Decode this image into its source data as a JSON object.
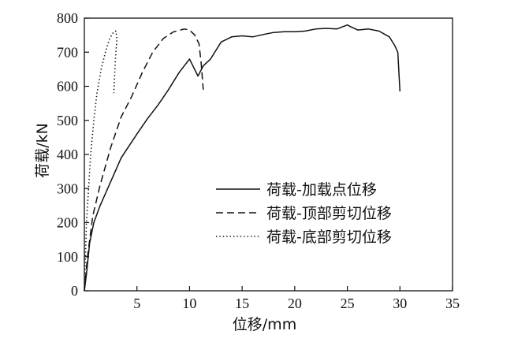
{
  "chart_data": {
    "type": "line",
    "xlabel": "位移/mm",
    "ylabel": "荷载/kN",
    "xlim": [
      0,
      35
    ],
    "ylim": [
      0,
      800
    ],
    "xticks": [
      5,
      10,
      15,
      20,
      25,
      30,
      35
    ],
    "yticks": [
      0,
      100,
      200,
      300,
      400,
      500,
      600,
      700,
      800
    ],
    "origin_label": "0",
    "grid": false,
    "legend_position": "center-right",
    "series": [
      {
        "name": "荷载-加载点位移",
        "style": "solid",
        "color": "#111111",
        "x": [
          0,
          0.2,
          0.5,
          0.9,
          1.5,
          2.5,
          3.5,
          5,
          6,
          7,
          8,
          9,
          10,
          10.8,
          11.3,
          12,
          13,
          14,
          15,
          16,
          17,
          18,
          19,
          20,
          21,
          22,
          23,
          24,
          25,
          25.3,
          26,
          27,
          28,
          29,
          29.5,
          29.8,
          30
        ],
        "y": [
          0,
          50,
          140,
          200,
          250,
          320,
          390,
          460,
          505,
          545,
          590,
          640,
          680,
          630,
          660,
          680,
          730,
          745,
          748,
          745,
          752,
          758,
          760,
          760,
          762,
          768,
          770,
          768,
          780,
          775,
          765,
          768,
          762,
          745,
          720,
          700,
          585
        ]
      },
      {
        "name": "荷载-顶部剪切位移",
        "style": "dashed",
        "color": "#111111",
        "x": [
          0,
          0.3,
          0.8,
          1.5,
          2.5,
          3.5,
          4.5,
          5.5,
          6.5,
          7.5,
          8.5,
          9.5,
          10,
          10.5,
          10.9,
          11.1,
          11.3
        ],
        "y": [
          0,
          100,
          220,
          310,
          420,
          510,
          570,
          640,
          700,
          740,
          760,
          768,
          765,
          750,
          725,
          670,
          590
        ]
      },
      {
        "name": "荷载-底部剪切位移",
        "style": "dotted",
        "color": "#111111",
        "x": [
          0,
          0.1,
          0.2,
          0.4,
          0.6,
          0.9,
          1.2,
          1.6,
          2.0,
          2.4,
          2.8,
          3.0,
          3.1,
          3.0,
          2.9,
          2.8
        ],
        "y": [
          0,
          100,
          200,
          300,
          400,
          500,
          580,
          650,
          700,
          740,
          760,
          762,
          740,
          700,
          650,
          580
        ]
      }
    ]
  }
}
